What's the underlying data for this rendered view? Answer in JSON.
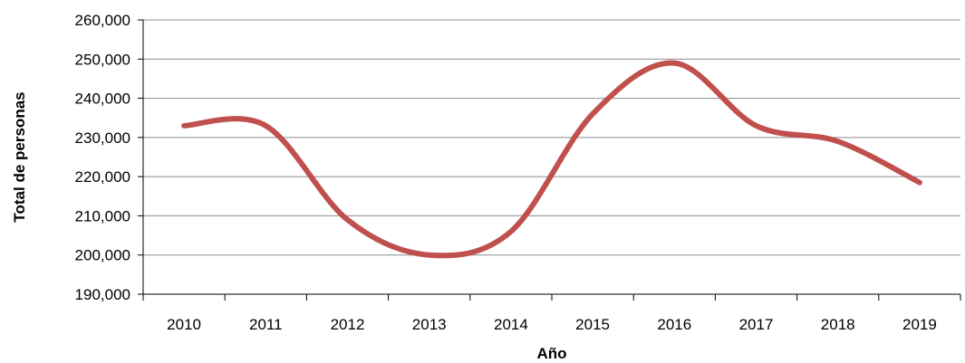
{
  "chart_data": {
    "type": "line",
    "title": "",
    "xlabel": "Año",
    "ylabel": "Total de personas",
    "categories": [
      "2010",
      "2011",
      "2012",
      "2013",
      "2014",
      "2015",
      "2016",
      "2017",
      "2018",
      "2019"
    ],
    "y_tick_labels": [
      "190,000",
      "200,000",
      "210,000",
      "220,000",
      "230,000",
      "240,000",
      "250,000",
      "260,000"
    ],
    "ylim": [
      190000,
      260000
    ],
    "grid": "horizontal",
    "legend": "none",
    "series": [
      {
        "color": "#c0504d",
        "values": [
          233000,
          233000,
          209000,
          200000,
          206000,
          236000,
          249000,
          233000,
          229000,
          218500
        ]
      }
    ]
  }
}
